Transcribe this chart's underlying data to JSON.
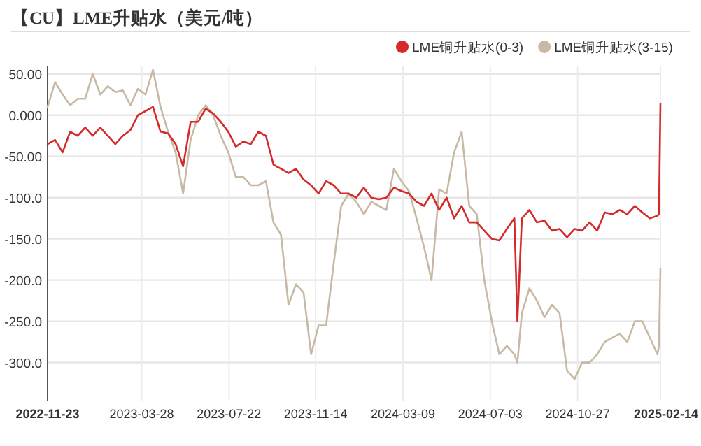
{
  "chart_data": {
    "type": "line",
    "title": "【CU】LME升贴水（美元/吨）",
    "x": [
      "2022-11-23",
      "2022-12-03",
      "2022-12-13",
      "2022-12-23",
      "2023-01-02",
      "2023-01-12",
      "2023-01-22",
      "2023-02-01",
      "2023-02-11",
      "2023-02-21",
      "2023-03-03",
      "2023-03-13",
      "2023-03-23",
      "2023-04-02",
      "2023-04-12",
      "2023-04-22",
      "2023-05-02",
      "2023-05-12",
      "2023-05-22",
      "2023-06-01",
      "2023-06-11",
      "2023-06-21",
      "2023-07-01",
      "2023-07-11",
      "2023-07-21",
      "2023-07-31",
      "2023-08-10",
      "2023-08-20",
      "2023-08-30",
      "2023-09-09",
      "2023-09-19",
      "2023-09-29",
      "2023-10-09",
      "2023-10-19",
      "2023-10-29",
      "2023-11-08",
      "2023-11-18",
      "2023-11-28",
      "2023-12-08",
      "2023-12-18",
      "2023-12-28",
      "2024-01-07",
      "2024-01-17",
      "2024-01-27",
      "2024-02-06",
      "2024-02-16",
      "2024-02-26",
      "2024-03-07",
      "2024-03-17",
      "2024-03-27",
      "2024-04-06",
      "2024-04-16",
      "2024-04-26",
      "2024-05-06",
      "2024-05-16",
      "2024-05-26",
      "2024-06-05",
      "2024-06-15",
      "2024-06-25",
      "2024-07-05",
      "2024-07-15",
      "2024-07-25",
      "2024-08-04",
      "2024-08-08",
      "2024-08-14",
      "2024-08-24",
      "2024-09-03",
      "2024-09-13",
      "2024-09-23",
      "2024-10-03",
      "2024-10-13",
      "2024-10-23",
      "2024-11-02",
      "2024-11-12",
      "2024-11-22",
      "2024-12-02",
      "2024-12-12",
      "2024-12-22",
      "2025-01-01",
      "2025-01-11",
      "2025-01-21",
      "2025-01-31",
      "2025-02-10",
      "2025-02-12",
      "2025-02-14"
    ],
    "series": [
      {
        "name": "LME铜升贴水(0-3)",
        "color": "#d42a2a",
        "values": [
          -35,
          -30,
          -45,
          -20,
          -25,
          -15,
          -25,
          -15,
          -25,
          -35,
          -25,
          -18,
          0,
          5,
          10,
          -20,
          -22,
          -35,
          -62,
          -8,
          -8,
          8,
          2,
          -8,
          -20,
          -38,
          -32,
          -35,
          -20,
          -25,
          -60,
          -65,
          -70,
          -65,
          -78,
          -85,
          -95,
          -80,
          -85,
          -95,
          -95,
          -100,
          -88,
          -100,
          -102,
          -100,
          -88,
          -92,
          -95,
          -105,
          -110,
          -95,
          -115,
          -100,
          -125,
          -110,
          -130,
          -130,
          -140,
          -150,
          -152,
          -138,
          -125,
          -250,
          -125,
          -115,
          -130,
          -128,
          -140,
          -138,
          -148,
          -138,
          -140,
          -130,
          -140,
          -118,
          -120,
          -115,
          -120,
          -110,
          -118,
          -125,
          -122,
          -120,
          14
        ]
      },
      {
        "name": "LME铜升贴水(3-15)",
        "color": "#c8b9a4",
        "values": [
          10,
          40,
          25,
          12,
          20,
          20,
          50,
          25,
          35,
          28,
          30,
          12,
          32,
          25,
          55,
          10,
          -20,
          -45,
          -95,
          -30,
          0,
          12,
          0,
          -25,
          -45,
          -75,
          -75,
          -85,
          -85,
          -80,
          -130,
          -145,
          -230,
          -205,
          -215,
          -290,
          -255,
          -255,
          -180,
          -110,
          -95,
          -105,
          -120,
          -105,
          -110,
          -115,
          -65,
          -80,
          -92,
          -125,
          -160,
          -200,
          -90,
          -95,
          -45,
          -20,
          -110,
          -120,
          -200,
          -250,
          -290,
          -280,
          -290,
          -300,
          -240,
          -210,
          -225,
          -245,
          -230,
          -240,
          -310,
          -320,
          -300,
          -300,
          -290,
          -275,
          -270,
          -265,
          -275,
          -250,
          -250,
          -270,
          -290,
          -280,
          -186
        ]
      }
    ],
    "xlim": [
      "2022-11-23",
      "2025-02-14"
    ],
    "xticks": [
      "2022-11-23",
      "2023-03-28",
      "2023-07-22",
      "2023-11-14",
      "2024-03-09",
      "2024-07-03",
      "2024-10-27",
      "2025-02-14"
    ],
    "ylim": [
      -347,
      60
    ],
    "yticks": [
      {
        "value": 50,
        "label": "50.00"
      },
      {
        "value": 0,
        "label": "0.000"
      },
      {
        "value": -50,
        "label": "-50.00"
      },
      {
        "value": -100,
        "label": "-100.0"
      },
      {
        "value": -150,
        "label": "-150.0"
      },
      {
        "value": -200,
        "label": "-200.0"
      },
      {
        "value": -250,
        "label": "-250.0"
      },
      {
        "value": -300,
        "label": "-300.0"
      }
    ],
    "grid": true,
    "legend": "top right"
  }
}
